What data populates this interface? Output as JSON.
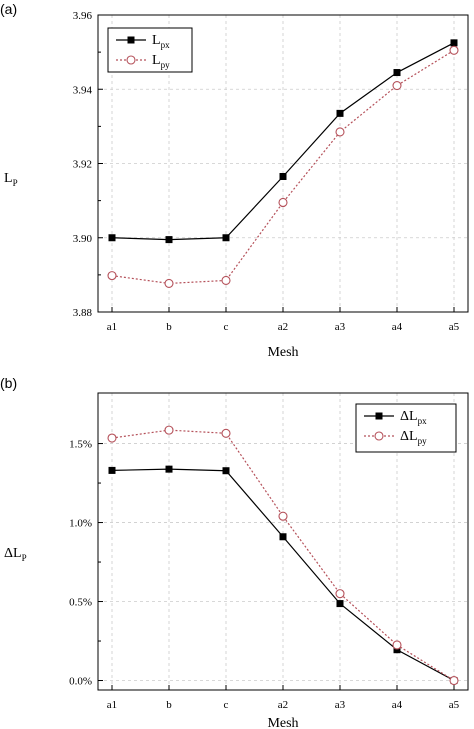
{
  "chart_data": [
    {
      "type": "line",
      "panel_label": "(a)",
      "categories": [
        "a1",
        "b",
        "c",
        "a2",
        "a3",
        "a4",
        "a5"
      ],
      "xlabel": "Mesh",
      "ylabel_main": "L",
      "ylabel_sub": "P",
      "ylim": [
        3.88,
        3.96
      ],
      "yticks": [
        3.88,
        3.9,
        3.92,
        3.94,
        3.96
      ],
      "ytick_labels": [
        "3.88",
        "3.90",
        "3.92",
        "3.94",
        "3.96"
      ],
      "grid": true,
      "legend_position": "top-left",
      "series": [
        {
          "name_main": "L",
          "name_sub": "px",
          "color": "#000000",
          "marker": "square-filled",
          "line": "solid",
          "values": [
            3.9,
            3.8995,
            3.9,
            3.9165,
            3.9335,
            3.9445,
            3.9525
          ]
        },
        {
          "name_main": "L",
          "name_sub": "py",
          "color": "#b5515a",
          "marker": "circle-open",
          "line": "dotted",
          "values": [
            3.8898,
            3.8877,
            3.8885,
            3.9095,
            3.9285,
            3.941,
            3.9505
          ]
        }
      ]
    },
    {
      "type": "line",
      "panel_label": "(b)",
      "categories": [
        "a1",
        "b",
        "c",
        "a2",
        "a3",
        "a4",
        "a5"
      ],
      "xlabel": "Mesh",
      "ylabel_main": "ΔL",
      "ylabel_sub": "P",
      "ylim": [
        -0.0006,
        0.0182
      ],
      "yticks": [
        0.0,
        0.005,
        0.01,
        0.015
      ],
      "ytick_labels": [
        "0.0%",
        "0.5%",
        "1.0%",
        "1.5%"
      ],
      "grid": true,
      "legend_position": "top-right",
      "series": [
        {
          "name_main": "ΔL",
          "name_sub": "px",
          "color": "#000000",
          "marker": "square-filled",
          "line": "solid",
          "values": [
            0.0133,
            0.01338,
            0.01328,
            0.0091,
            0.00487,
            0.00195,
            0.0
          ]
        },
        {
          "name_main": "ΔL",
          "name_sub": "py",
          "color": "#b5515a",
          "marker": "circle-open",
          "line": "dotted",
          "values": [
            0.01535,
            0.01585,
            0.01565,
            0.0104,
            0.0055,
            0.00225,
            0.0
          ]
        }
      ]
    }
  ]
}
